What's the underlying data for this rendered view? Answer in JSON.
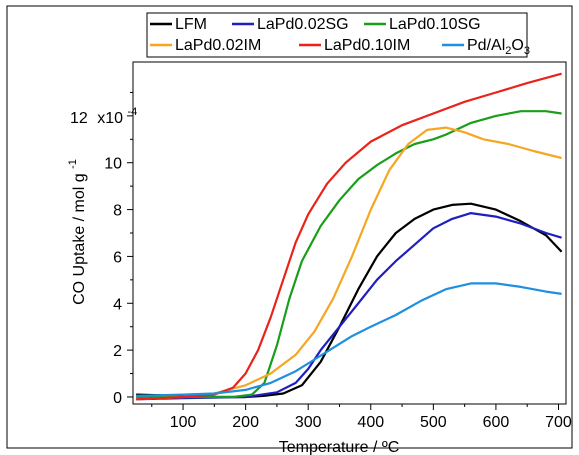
{
  "chart_data": {
    "type": "line",
    "xlabel": "Temperature / ºC",
    "ylabel_main": "CO Uptake / mol g",
    "ylabel_sup": "-1",
    "xlim": [
      20,
      712
    ],
    "ylim": [
      -0.3,
      14.3
    ],
    "xticks": [
      100,
      200,
      300,
      400,
      500,
      600,
      700
    ],
    "yticks": [
      0,
      2,
      4,
      6,
      8,
      10,
      12
    ],
    "ytick_labels": [
      "0",
      "2",
      "4",
      "6",
      "8",
      "10",
      "12"
    ],
    "y_multiplier_prefix": "x10",
    "y_multiplier_exp": "-4",
    "legend_rows": [
      [
        0,
        1,
        2
      ],
      [
        3,
        4,
        5
      ]
    ],
    "series": [
      {
        "name": "LFM",
        "color": "#000000",
        "x": [
          25,
          100,
          150,
          200,
          230,
          260,
          290,
          320,
          350,
          380,
          410,
          440,
          470,
          500,
          530,
          560,
          600,
          640,
          680,
          705
        ],
        "y": [
          0.1,
          0.05,
          0.0,
          0.0,
          0.05,
          0.15,
          0.5,
          1.5,
          3.0,
          4.6,
          6.0,
          7.0,
          7.6,
          8.0,
          8.2,
          8.25,
          8.0,
          7.5,
          6.9,
          6.2
        ]
      },
      {
        "name": "LaPd0.02SG",
        "color": "#1f1fbf",
        "x": [
          25,
          100,
          200,
          250,
          280,
          300,
          320,
          350,
          380,
          410,
          440,
          470,
          500,
          530,
          560,
          600,
          640,
          680,
          705
        ],
        "y": [
          -0.1,
          -0.05,
          0.0,
          0.2,
          0.6,
          1.2,
          2.0,
          3.0,
          4.0,
          5.0,
          5.8,
          6.5,
          7.2,
          7.6,
          7.85,
          7.7,
          7.4,
          7.0,
          6.8
        ]
      },
      {
        "name": "LaPd0.10SG",
        "color": "#1a9e1a",
        "x": [
          25,
          100,
          180,
          210,
          230,
          250,
          270,
          290,
          320,
          350,
          380,
          410,
          440,
          470,
          500,
          520,
          560,
          600,
          640,
          680,
          705
        ],
        "y": [
          0.0,
          0.0,
          0.0,
          0.1,
          0.6,
          2.2,
          4.2,
          5.8,
          7.3,
          8.4,
          9.3,
          9.9,
          10.4,
          10.8,
          11.0,
          11.2,
          11.7,
          12.0,
          12.2,
          12.2,
          12.1
        ]
      },
      {
        "name": "LaPd0.02IM",
        "color": "#f5a623",
        "x": [
          25,
          100,
          150,
          200,
          240,
          280,
          310,
          340,
          370,
          400,
          430,
          460,
          490,
          520,
          550,
          580,
          620,
          660,
          705
        ],
        "y": [
          -0.1,
          0.0,
          0.15,
          0.5,
          1.0,
          1.8,
          2.8,
          4.2,
          6.0,
          8.0,
          9.7,
          10.8,
          11.4,
          11.5,
          11.3,
          11.0,
          10.8,
          10.5,
          10.2
        ]
      },
      {
        "name": "LaPd0.10IM",
        "color": "#e8231a",
        "x": [
          25,
          100,
          150,
          180,
          200,
          220,
          240,
          260,
          280,
          300,
          330,
          360,
          400,
          450,
          500,
          550,
          600,
          650,
          705
        ],
        "y": [
          -0.1,
          0.0,
          0.1,
          0.4,
          1.0,
          2.0,
          3.4,
          5.0,
          6.6,
          7.8,
          9.1,
          10.0,
          10.9,
          11.6,
          12.1,
          12.6,
          13.0,
          13.4,
          13.8
        ]
      },
      {
        "name": "Pd/Al2O3",
        "name_main": "Pd/Al",
        "name_sub1": "2",
        "name_mid": "O",
        "name_sub2": "3",
        "color": "#1f8fe0",
        "x": [
          25,
          100,
          150,
          200,
          240,
          280,
          310,
          340,
          370,
          400,
          440,
          480,
          520,
          560,
          600,
          640,
          680,
          705
        ],
        "y": [
          0.05,
          0.1,
          0.15,
          0.3,
          0.6,
          1.1,
          1.6,
          2.1,
          2.6,
          3.0,
          3.5,
          4.1,
          4.6,
          4.85,
          4.85,
          4.7,
          4.5,
          4.4
        ]
      }
    ]
  }
}
